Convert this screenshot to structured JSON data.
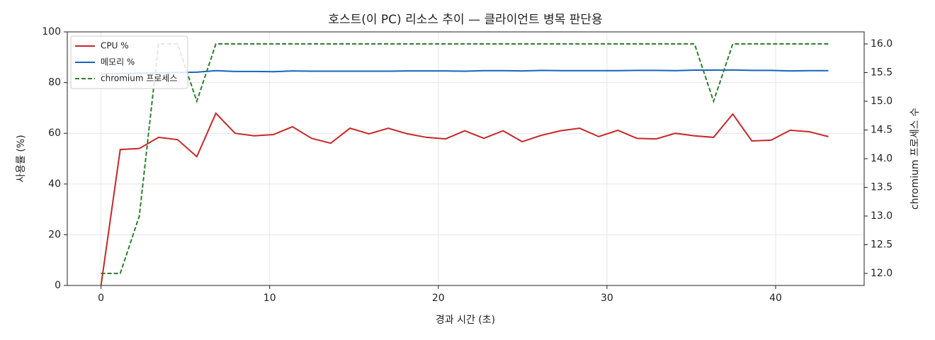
{
  "chart_data": {
    "type": "line",
    "title": "호스트(이 PC) 리소스 추이 — 클라이언트 병목 판단용",
    "x_label": "경과 시간 (초)",
    "y_label": "사용률 (%)",
    "y2_label": "chromium 프로세스 수",
    "x": [
      0,
      1.14,
      2.27,
      3.41,
      4.54,
      5.68,
      6.81,
      7.95,
      9.08,
      10.22,
      11.35,
      12.49,
      13.62,
      14.76,
      15.89,
      17.03,
      18.16,
      19.3,
      20.43,
      21.57,
      22.7,
      23.84,
      24.97,
      26.11,
      27.24,
      28.38,
      29.51,
      30.65,
      31.78,
      32.92,
      34.05,
      35.19,
      36.32,
      37.46,
      38.59,
      39.73,
      40.86,
      42.0,
      43.13
    ],
    "series": [
      {
        "name": "CPU %",
        "color": "#c62828",
        "style": "solid",
        "values": [
          0,
          53.6,
          54,
          58.4,
          57.5,
          50.8,
          67.9,
          60,
          59,
          59.5,
          62.6,
          58,
          56.1,
          62,
          59.8,
          62,
          59.8,
          58.4,
          57.8,
          61,
          58,
          61,
          56.7,
          59.2,
          61,
          62,
          58.7,
          61.2,
          58,
          57.8,
          60,
          59,
          58.4,
          67.6,
          57,
          57.3,
          61.2,
          60.6,
          58.7
        ]
      },
      {
        "name": "메모리 %",
        "color": "#1565c0",
        "style": "solid",
        "values": [
          83.5,
          83.6,
          83.7,
          83.8,
          84.0,
          84.1,
          84.7,
          84.4,
          84.4,
          84.3,
          84.6,
          84.5,
          84.5,
          84.5,
          84.5,
          84.5,
          84.6,
          84.6,
          84.6,
          84.5,
          84.7,
          84.7,
          84.6,
          84.8,
          84.7,
          84.7,
          84.7,
          84.7,
          84.8,
          84.8,
          84.7,
          84.9,
          84.9,
          85.0,
          84.8,
          84.8,
          84.6,
          84.7,
          84.7
        ]
      },
      {
        "name": "chromium 프로세스",
        "color": "#2e7d32",
        "style": "dashed",
        "axis": "y2",
        "values": [
          12,
          12,
          13,
          16,
          16,
          15,
          16,
          16,
          16,
          16,
          16,
          16,
          16,
          16,
          16,
          16,
          16,
          16,
          16,
          16,
          16,
          16,
          16,
          16,
          16,
          16,
          16,
          16,
          16,
          16,
          16,
          16,
          15,
          16,
          16,
          16,
          16,
          16,
          16
        ]
      }
    ],
    "xlim": [
      -2.0,
      45.25
    ],
    "xticks": [
      0,
      10,
      20,
      30,
      40
    ],
    "ylim": [
      0,
      100
    ],
    "yticks": [
      0,
      20,
      40,
      60,
      80,
      100
    ],
    "y2lim": [
      11.79,
      16.21
    ],
    "y2ticks": [
      {
        "value": 12,
        "label": "12.0"
      },
      12.5,
      {
        "value": 13,
        "label": "13.0"
      },
      13.5,
      {
        "value": 14,
        "label": "14.0"
      },
      14.5,
      {
        "value": 15,
        "label": "15.0"
      },
      15.5,
      {
        "value": 16,
        "label": "16.0"
      }
    ],
    "grid": true,
    "legend": "upper-left"
  }
}
